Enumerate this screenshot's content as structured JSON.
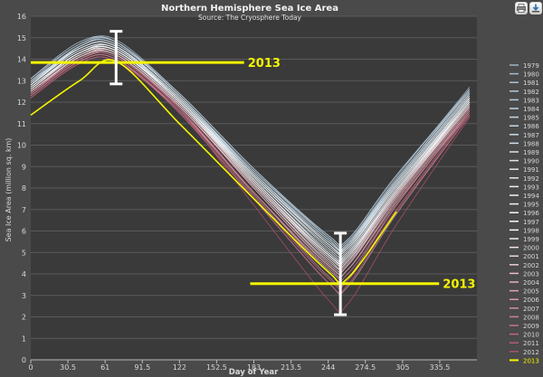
{
  "chart_data": {
    "type": "line",
    "title": "Northern Hemisphere Sea Ice Area",
    "subtitle": "Source: The Cryosphere Today",
    "xlabel": "Day of Year",
    "ylabel": "Sea Ice Area (million sq. km)",
    "xlim": [
      0,
      366
    ],
    "ylim": [
      0,
      16
    ],
    "x_ticks": [
      0,
      30.5,
      61,
      91.5,
      122,
      152.5,
      183,
      213.5,
      244,
      274.5,
      305,
      335.5
    ],
    "x_tick_labels": [
      "0",
      "30.5",
      "61",
      "91.5",
      "122",
      "152.5",
      "183",
      "213.5",
      "244",
      "274.5",
      "305",
      "335.5"
    ],
    "y_ticks": [
      0,
      1,
      2,
      3,
      4,
      5,
      6,
      7,
      8,
      9,
      10,
      11,
      12,
      13,
      14,
      15,
      16
    ],
    "y_tick_labels": [
      "0",
      "1",
      "2",
      "3",
      "4",
      "5",
      "6",
      "7",
      "8",
      "9",
      "10",
      "11",
      "12",
      "13",
      "14",
      "15",
      "16"
    ],
    "grid": true,
    "legend_position": "right",
    "series": [
      {
        "name": "1979",
        "color": "#9fb4c4",
        "values": [
          12.9,
          14.6,
          14.8,
          12.3,
          8.8,
          5.8,
          5.6,
          8.6,
          12.5
        ]
      },
      {
        "name": "1980",
        "color": "#a7bccb",
        "values": [
          13.1,
          14.7,
          14.9,
          12.4,
          8.9,
          5.7,
          5.5,
          8.5,
          12.7
        ]
      },
      {
        "name": "1981",
        "color": "#adc2d1",
        "values": [
          12.8,
          14.5,
          14.6,
          12.2,
          8.7,
          5.6,
          5.4,
          8.3,
          12.4
        ]
      },
      {
        "name": "1982",
        "color": "#b3c8d6",
        "values": [
          13.0,
          14.7,
          14.8,
          12.4,
          8.9,
          5.8,
          5.6,
          8.6,
          12.6
        ]
      },
      {
        "name": "1983",
        "color": "#b9cddb",
        "values": [
          13.1,
          14.8,
          14.8,
          12.3,
          8.8,
          5.7,
          5.5,
          8.4,
          12.6
        ]
      },
      {
        "name": "1984",
        "color": "#bfd2df",
        "values": [
          12.8,
          14.5,
          14.6,
          12.2,
          8.6,
          5.4,
          5.2,
          8.2,
          12.3
        ]
      },
      {
        "name": "1985",
        "color": "#c4d6e3",
        "values": [
          12.9,
          14.6,
          14.7,
          12.3,
          8.7,
          5.6,
          5.3,
          8.3,
          12.4
        ]
      },
      {
        "name": "1986",
        "color": "#c9dae6",
        "values": [
          13.0,
          14.5,
          14.6,
          12.2,
          8.6,
          5.5,
          5.4,
          8.4,
          12.5
        ]
      },
      {
        "name": "1987",
        "color": "#cedde8",
        "values": [
          12.8,
          14.6,
          14.7,
          12.3,
          8.7,
          5.5,
          5.4,
          8.3,
          12.4
        ]
      },
      {
        "name": "1988",
        "color": "#d3e1eb",
        "values": [
          12.9,
          14.5,
          14.6,
          12.1,
          8.6,
          5.4,
          5.3,
          8.3,
          12.4
        ]
      },
      {
        "name": "1989",
        "color": "#d8e5ee",
        "values": [
          12.8,
          14.4,
          14.5,
          12.1,
          8.4,
          5.1,
          5.0,
          8.0,
          12.2
        ]
      },
      {
        "name": "1990",
        "color": "#dde8f0",
        "values": [
          12.7,
          14.3,
          14.4,
          12.0,
          8.3,
          4.9,
          4.9,
          7.9,
          12.1
        ]
      },
      {
        "name": "1991",
        "color": "#e2ebf2",
        "values": [
          12.7,
          14.3,
          14.5,
          12.1,
          8.4,
          5.0,
          5.0,
          8.0,
          12.1
        ]
      },
      {
        "name": "1992",
        "color": "#e6eef4",
        "values": [
          12.8,
          14.5,
          14.6,
          12.2,
          8.6,
          5.4,
          5.3,
          8.2,
          12.3
        ]
      },
      {
        "name": "1993",
        "color": "#eaf1f6",
        "values": [
          12.7,
          14.3,
          14.4,
          12.0,
          8.4,
          5.0,
          4.9,
          7.9,
          12.1
        ]
      },
      {
        "name": "1994",
        "color": "#eef4f8",
        "values": [
          12.8,
          14.4,
          14.5,
          12.1,
          8.5,
          5.2,
          5.1,
          8.1,
          12.2
        ]
      },
      {
        "name": "1995",
        "color": "#f2f6fa",
        "values": [
          12.6,
          14.2,
          14.3,
          11.9,
          8.2,
          4.8,
          4.7,
          7.8,
          12.0
        ]
      },
      {
        "name": "1996",
        "color": "#f6f9fb",
        "values": [
          12.7,
          14.3,
          14.4,
          12.1,
          8.5,
          5.3,
          5.2,
          8.1,
          12.2
        ]
      },
      {
        "name": "1997",
        "color": "#fafbfd",
        "values": [
          12.6,
          14.3,
          14.4,
          12.0,
          8.3,
          4.9,
          4.8,
          7.9,
          12.0
        ]
      },
      {
        "name": "1998",
        "color": "#ffffff",
        "values": [
          12.6,
          14.2,
          14.4,
          12.0,
          8.3,
          4.9,
          4.8,
          7.8,
          12.0
        ]
      },
      {
        "name": "1999",
        "color": "#fbeef0",
        "values": [
          12.5,
          14.1,
          14.3,
          11.9,
          8.2,
          4.7,
          4.6,
          7.7,
          11.9
        ]
      },
      {
        "name": "2000",
        "color": "#f7e2e6",
        "values": [
          12.5,
          14.1,
          14.2,
          11.8,
          8.1,
          4.6,
          4.6,
          7.7,
          11.8
        ]
      },
      {
        "name": "2001",
        "color": "#f3d6dc",
        "values": [
          12.6,
          14.2,
          14.3,
          11.9,
          8.3,
          4.8,
          4.8,
          7.8,
          11.9
        ]
      },
      {
        "name": "2002",
        "color": "#efcad2",
        "values": [
          12.5,
          14.1,
          14.2,
          11.8,
          8.0,
          4.4,
          4.4,
          7.6,
          11.8
        ]
      },
      {
        "name": "2003",
        "color": "#eabec7",
        "values": [
          12.4,
          14.1,
          14.2,
          11.8,
          8.1,
          4.5,
          4.5,
          7.6,
          11.8
        ]
      },
      {
        "name": "2004",
        "color": "#e5b2bd",
        "values": [
          12.4,
          14.0,
          14.2,
          11.8,
          8.0,
          4.4,
          4.4,
          7.5,
          11.7
        ]
      },
      {
        "name": "2005",
        "color": "#e0a6b3",
        "values": [
          12.3,
          13.9,
          14.0,
          11.6,
          7.8,
          4.2,
          4.2,
          7.4,
          11.6
        ]
      },
      {
        "name": "2006",
        "color": "#da9aa8",
        "values": [
          12.2,
          13.8,
          13.9,
          11.6,
          7.8,
          4.3,
          4.2,
          7.3,
          11.5
        ]
      },
      {
        "name": "2007",
        "color": "#d38e9e",
        "values": [
          12.3,
          13.9,
          14.0,
          11.5,
          7.5,
          3.6,
          3.4,
          6.8,
          11.4
        ]
      },
      {
        "name": "2008",
        "color": "#cc8294",
        "values": [
          12.4,
          14.0,
          14.1,
          11.7,
          7.7,
          3.9,
          3.8,
          7.2,
          11.6
        ]
      },
      {
        "name": "2009",
        "color": "#c5768a",
        "values": [
          12.4,
          14.0,
          14.1,
          11.7,
          7.8,
          4.1,
          4.0,
          7.2,
          11.6
        ]
      },
      {
        "name": "2010",
        "color": "#be6a80",
        "values": [
          12.3,
          13.9,
          14.0,
          11.6,
          7.6,
          3.8,
          3.7,
          7.0,
          11.5
        ]
      },
      {
        "name": "2011",
        "color": "#b65e76",
        "values": [
          12.2,
          13.8,
          13.9,
          11.5,
          7.5,
          3.6,
          3.5,
          6.9,
          11.4
        ]
      },
      {
        "name": "2012",
        "color": "#ad506a",
        "values": [
          12.2,
          13.8,
          13.9,
          11.6,
          7.2,
          2.8,
          2.6,
          6.3,
          11.3
        ]
      },
      {
        "name": "2013",
        "color": "#f5f500",
        "values": [
          11.4,
          13.0,
          13.9,
          11.0,
          7.5,
          4.1,
          3.8,
          6.9,
          null
        ]
      }
    ],
    "series_x": [
      0,
      40,
      70,
      122,
      183,
      244,
      260,
      300,
      360
    ],
    "annotations": [
      {
        "text": "2013",
        "y": 13.85,
        "x1": 0,
        "x2": 175,
        "label_x": 178
      },
      {
        "text": "2013",
        "y": 3.55,
        "x1": 180,
        "x2": 335,
        "label_x": 338
      }
    ],
    "range_bars": [
      {
        "x": 70,
        "low": 12.85,
        "high": 15.3
      },
      {
        "x": 254,
        "low": 2.1,
        "high": 5.9
      }
    ],
    "highlight_series": "2013",
    "highlight_color": "#f5f500"
  },
  "toolbar": {
    "print_icon": "print-icon",
    "export_icon": "download-icon"
  }
}
